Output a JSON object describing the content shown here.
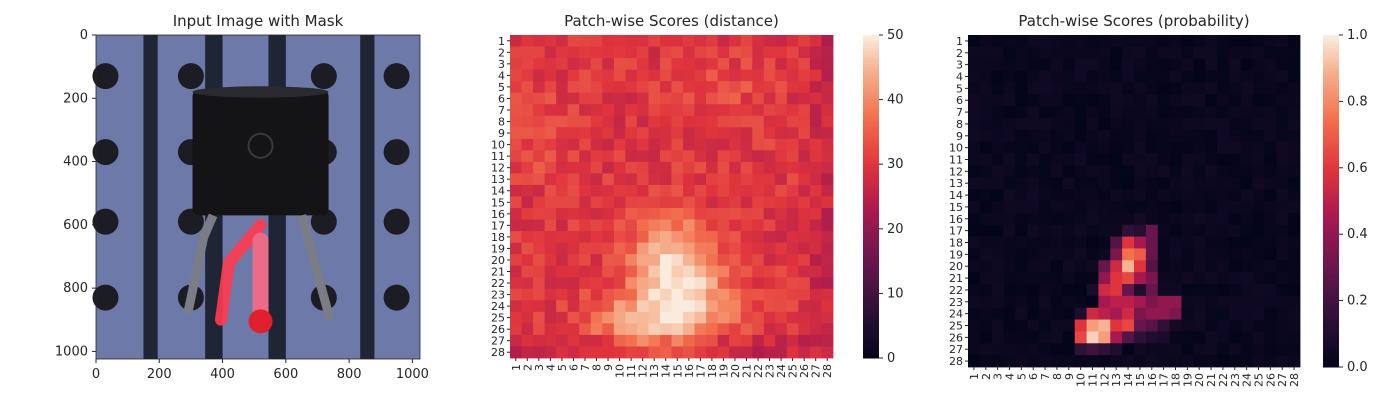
{
  "chart_data": [
    {
      "type": "image",
      "title": "Input Image with Mask",
      "x_ticks": [
        "0",
        "200",
        "400",
        "600",
        "800",
        "1000"
      ],
      "x_tick_values": [
        0,
        200,
        400,
        600,
        800,
        1000
      ],
      "y_ticks": [
        "0",
        "200",
        "400",
        "600",
        "800",
        "1000"
      ],
      "y_tick_values": [
        0,
        200,
        400,
        600,
        800,
        1000
      ],
      "xlim": [
        0,
        1024
      ],
      "ylim": [
        1024,
        0
      ],
      "mask_color": "#ff3b4f",
      "background_color": "#6d79a8"
    },
    {
      "type": "heatmap",
      "title": "Patch-wise Scores (distance)",
      "x_labels": [
        "1",
        "2",
        "3",
        "4",
        "5",
        "6",
        "7",
        "8",
        "9",
        "10",
        "11",
        "12",
        "13",
        "14",
        "15",
        "16",
        "17",
        "18",
        "19",
        "20",
        "21",
        "22",
        "23",
        "24",
        "25",
        "26",
        "27",
        "28"
      ],
      "y_labels": [
        "1",
        "2",
        "3",
        "4",
        "5",
        "6",
        "7",
        "8",
        "9",
        "10",
        "11",
        "12",
        "13",
        "14",
        "15",
        "16",
        "17",
        "18",
        "19",
        "20",
        "21",
        "22",
        "23",
        "24",
        "25",
        "26",
        "27",
        "28"
      ],
      "colorbar": {
        "ticks": [
          "0",
          "10",
          "20",
          "30",
          "40",
          "50"
        ],
        "tick_values": [
          0,
          10,
          20,
          30,
          40,
          50
        ],
        "range": [
          0,
          50
        ],
        "colormap": "rocket"
      },
      "field": {
        "base": 30,
        "blobs": [
          {
            "r": 20.5,
            "c": 14.5,
            "sr": 3.0,
            "sc": 2.5,
            "a": 18
          },
          {
            "r": 25.5,
            "c": 12.0,
            "sr": 1.8,
            "sc": 3.0,
            "a": 14
          },
          {
            "r": 24.0,
            "c": 17.5,
            "sr": 2.0,
            "sc": 2.5,
            "a": 9
          },
          {
            "r": 9.0,
            "c": 3.0,
            "sr": 3.0,
            "sc": 1.5,
            "a": 3
          },
          {
            "r": 5.0,
            "c": 19.0,
            "sr": 1.5,
            "sc": 3.0,
            "a": 3
          }
        ],
        "noise": 3.5
      }
    },
    {
      "type": "heatmap",
      "title": "Patch-wise Scores (probability)",
      "x_labels": [
        "1",
        "2",
        "3",
        "4",
        "5",
        "6",
        "7",
        "8",
        "9",
        "10",
        "11",
        "12",
        "13",
        "14",
        "15",
        "16",
        "17",
        "18",
        "19",
        "20",
        "21",
        "22",
        "23",
        "24",
        "25",
        "26",
        "27",
        "28"
      ],
      "y_labels": [
        "1",
        "2",
        "3",
        "4",
        "5",
        "6",
        "7",
        "8",
        "9",
        "10",
        "11",
        "12",
        "13",
        "14",
        "15",
        "16",
        "17",
        "18",
        "19",
        "20",
        "21",
        "22",
        "23",
        "24",
        "25",
        "26",
        "27",
        "28"
      ],
      "colorbar": {
        "ticks": [
          "0.0",
          "0.2",
          "0.4",
          "0.6",
          "0.8",
          "1.0"
        ],
        "tick_values": [
          0,
          0.2,
          0.4,
          0.6,
          0.8,
          1.0
        ],
        "range": [
          0,
          1
        ],
        "colormap": "rocket"
      },
      "cells": [
        {
          "r": 17,
          "c": 15,
          "v": 0.12
        },
        {
          "r": 17,
          "c": 14,
          "v": 0.15
        },
        {
          "r": 17,
          "c": 16,
          "v": 0.3
        },
        {
          "r": 18,
          "c": 13,
          "v": 0.25
        },
        {
          "r": 18,
          "c": 14,
          "v": 0.6
        },
        {
          "r": 18,
          "c": 15,
          "v": 0.45
        },
        {
          "r": 18,
          "c": 16,
          "v": 0.3
        },
        {
          "r": 19,
          "c": 13,
          "v": 0.35
        },
        {
          "r": 19,
          "c": 14,
          "v": 0.75
        },
        {
          "r": 19,
          "c": 15,
          "v": 0.7
        },
        {
          "r": 19,
          "c": 16,
          "v": 0.3
        },
        {
          "r": 20,
          "c": 12,
          "v": 0.3
        },
        {
          "r": 20,
          "c": 13,
          "v": 0.55
        },
        {
          "r": 20,
          "c": 14,
          "v": 0.9
        },
        {
          "r": 20,
          "c": 15,
          "v": 0.6
        },
        {
          "r": 20,
          "c": 16,
          "v": 0.25
        },
        {
          "r": 21,
          "c": 12,
          "v": 0.4
        },
        {
          "r": 21,
          "c": 13,
          "v": 0.6
        },
        {
          "r": 21,
          "c": 14,
          "v": 0.65
        },
        {
          "r": 21,
          "c": 15,
          "v": 0.45
        },
        {
          "r": 21,
          "c": 16,
          "v": 0.35
        },
        {
          "r": 22,
          "c": 12,
          "v": 0.55
        },
        {
          "r": 22,
          "c": 13,
          "v": 0.6
        },
        {
          "r": 22,
          "c": 14,
          "v": 0.3
        },
        {
          "r": 22,
          "c": 15,
          "v": 0.1
        },
        {
          "r": 22,
          "c": 16,
          "v": 0.3
        },
        {
          "r": 23,
          "c": 12,
          "v": 0.45
        },
        {
          "r": 23,
          "c": 13,
          "v": 0.5
        },
        {
          "r": 23,
          "c": 14,
          "v": 0.5
        },
        {
          "r": 23,
          "c": 15,
          "v": 0.45
        },
        {
          "r": 23,
          "c": 16,
          "v": 0.35
        },
        {
          "r": 23,
          "c": 17,
          "v": 0.4
        },
        {
          "r": 23,
          "c": 18,
          "v": 0.4
        },
        {
          "r": 24,
          "c": 11,
          "v": 0.55
        },
        {
          "r": 24,
          "c": 12,
          "v": 0.5
        },
        {
          "r": 24,
          "c": 13,
          "v": 0.45
        },
        {
          "r": 24,
          "c": 14,
          "v": 0.55
        },
        {
          "r": 24,
          "c": 15,
          "v": 0.35
        },
        {
          "r": 24,
          "c": 16,
          "v": 0.4
        },
        {
          "r": 24,
          "c": 17,
          "v": 0.4
        },
        {
          "r": 24,
          "c": 18,
          "v": 0.35
        },
        {
          "r": 25,
          "c": 10,
          "v": 0.6
        },
        {
          "r": 25,
          "c": 11,
          "v": 0.85
        },
        {
          "r": 25,
          "c": 12,
          "v": 0.9
        },
        {
          "r": 25,
          "c": 13,
          "v": 0.6
        },
        {
          "r": 25,
          "c": 14,
          "v": 0.65
        },
        {
          "r": 25,
          "c": 15,
          "v": 0.3
        },
        {
          "r": 25,
          "c": 16,
          "v": 0.25
        },
        {
          "r": 25,
          "c": 17,
          "v": 0.15
        },
        {
          "r": 26,
          "c": 10,
          "v": 0.65
        },
        {
          "r": 26,
          "c": 11,
          "v": 0.95
        },
        {
          "r": 26,
          "c": 12,
          "v": 0.85
        },
        {
          "r": 26,
          "c": 13,
          "v": 0.45
        },
        {
          "r": 26,
          "c": 14,
          "v": 0.25
        },
        {
          "r": 26,
          "c": 15,
          "v": 0.15
        },
        {
          "r": 26,
          "c": 16,
          "v": 0.1
        },
        {
          "r": 27,
          "c": 10,
          "v": 0.15
        },
        {
          "r": 27,
          "c": 11,
          "v": 0.2
        },
        {
          "r": 27,
          "c": 12,
          "v": 0.15
        },
        {
          "r": 27,
          "c": 13,
          "v": 0.1
        },
        {
          "r": 16,
          "c": 15,
          "v": 0.06
        },
        {
          "r": 22,
          "c": 11,
          "v": 0.08
        },
        {
          "r": 24,
          "c": 10,
          "v": 0.1
        },
        {
          "r": 26,
          "c": 17,
          "v": 0.08
        },
        {
          "r": 25,
          "c": 18,
          "v": 0.06
        }
      ]
    }
  ]
}
